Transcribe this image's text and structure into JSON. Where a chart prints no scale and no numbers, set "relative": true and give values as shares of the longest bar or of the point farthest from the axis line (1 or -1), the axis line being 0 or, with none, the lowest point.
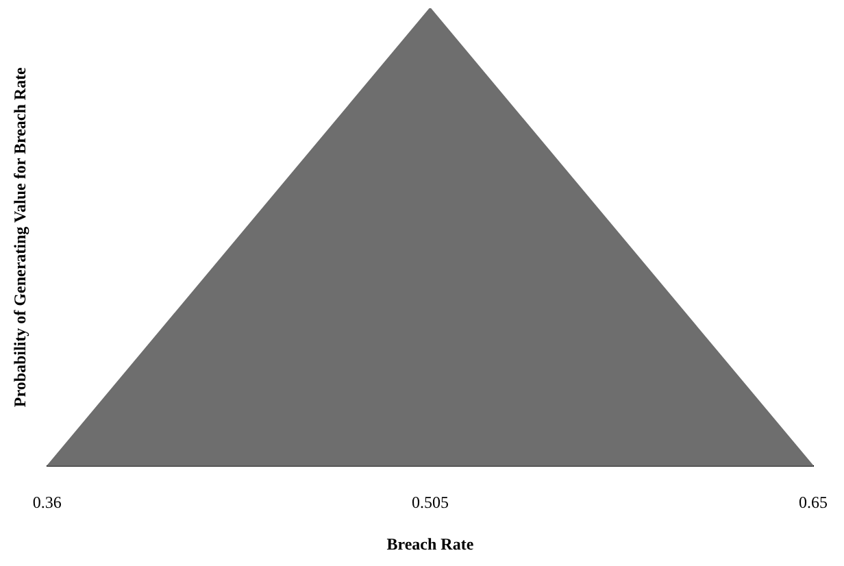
{
  "chart_data": {
    "type": "area",
    "xlabel": "Breach Rate",
    "ylabel": "Probability of Generating Value for Breach Rate",
    "x": [
      0.36,
      0.505,
      0.65
    ],
    "relative": true,
    "series": [
      {
        "color": "#6e6e6e",
        "values": [
          0,
          1,
          0
        ]
      }
    ],
    "xlim": [
      0.36,
      0.65
    ],
    "xticks": [
      0.36,
      0.505,
      0.65
    ],
    "grid": false,
    "legend": false
  }
}
